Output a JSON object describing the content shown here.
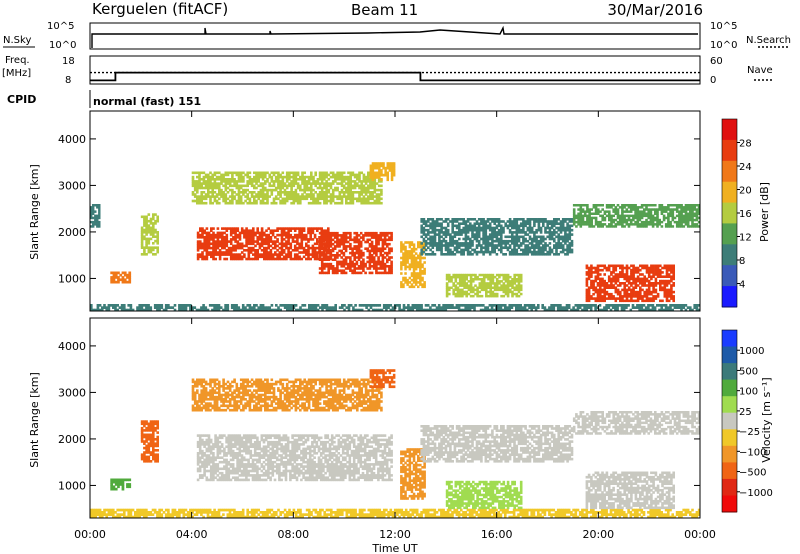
{
  "header": {
    "station": "Kerguelen (fitACF)",
    "beam": "Beam 11",
    "date": "30/Mar/2016"
  },
  "params": {
    "nsky_label": "N.Sky",
    "nsearch_label": "N.Search",
    "freq_label_line1": "Freq.",
    "freq_label_line2": "[MHz]",
    "nave_label": "Nave",
    "cpid_label": "CPID",
    "cpid_text": "normal (fast) 151",
    "nsky_ticks": [
      "10^5",
      "10^0"
    ],
    "nsearch_ticks": [
      "10^5",
      "10^0"
    ],
    "freq_ticks": [
      "18",
      "8"
    ],
    "nave_ticks": [
      "60",
      "0"
    ],
    "freq_steps": [
      {
        "t": 0.0,
        "mhz": 9.0
      },
      {
        "t": 1.0,
        "mhz": 12.0
      },
      {
        "t": 13.0,
        "mhz": 9.0
      },
      {
        "t": 24.0,
        "mhz": 9.0
      }
    ],
    "nave_level": 24
  },
  "chart_data": [
    {
      "type": "heatmap",
      "name": "power",
      "ylabel": "Slant Range [km]",
      "yticks": [
        "1000",
        "2000",
        "3000",
        "4000"
      ],
      "ylim": [
        300,
        4600
      ],
      "xlim": [
        0,
        24
      ],
      "colorbar_label": "Power [dB]",
      "colorbar_ticks": [
        "4",
        "8",
        "12",
        "16",
        "20",
        "24",
        "28"
      ],
      "colors": [
        "#1a1aff",
        "#3a5ab8",
        "#3d7d78",
        "#55a050",
        "#b4cc40",
        "#f0b020",
        "#f07818",
        "#e83c10",
        "#e01010"
      ],
      "regions": [
        {
          "t0": 0.0,
          "t1": 24.0,
          "r0": 300,
          "r1": 450,
          "v": 9
        },
        {
          "t0": 0.8,
          "t1": 1.6,
          "r0": 900,
          "r1": 1150,
          "v": 21
        },
        {
          "t0": 2.0,
          "t1": 2.7,
          "r0": 1500,
          "r1": 2400,
          "v": 15
        },
        {
          "t0": 4.2,
          "t1": 9.5,
          "r0": 1400,
          "r1": 2100,
          "v": 26
        },
        {
          "t0": 9.0,
          "t1": 11.9,
          "r0": 1100,
          "r1": 2000,
          "v": 28
        },
        {
          "t0": 4.0,
          "t1": 11.5,
          "r0": 2600,
          "r1": 3300,
          "v": 14
        },
        {
          "t0": 11.0,
          "t1": 12.0,
          "r0": 3100,
          "r1": 3500,
          "v": 19
        },
        {
          "t0": 12.2,
          "t1": 13.2,
          "r0": 800,
          "r1": 1800,
          "v": 17
        },
        {
          "t0": 13.0,
          "t1": 19.0,
          "r0": 1500,
          "r1": 2300,
          "v": 8
        },
        {
          "t0": 14.0,
          "t1": 17.0,
          "r0": 600,
          "r1": 1100,
          "v": 15
        },
        {
          "t0": 19.0,
          "t1": 24.0,
          "r0": 2100,
          "r1": 2600,
          "v": 10
        },
        {
          "t0": 19.5,
          "t1": 23.0,
          "r0": 500,
          "r1": 1300,
          "v": 25
        },
        {
          "t0": 0.0,
          "t1": 0.4,
          "r0": 2100,
          "r1": 2600,
          "v": 7
        }
      ]
    },
    {
      "type": "heatmap",
      "name": "velocity",
      "ylabel": "Slant Range [km]",
      "yticks": [
        "1000",
        "2000",
        "3000",
        "4000"
      ],
      "ylim": [
        300,
        4600
      ],
      "xlim": [
        0,
        24
      ],
      "xticks": [
        "00:00",
        "04:00",
        "08:00",
        "12:00",
        "16:00",
        "20:00",
        "00:00"
      ],
      "xlabel": "Time UT",
      "colorbar_label": "Velocity [m s⁻¹]",
      "colorbar_ticks": [
        "1000",
        "500",
        "100",
        "25",
        "−25",
        "−100",
        "−500",
        "−1000"
      ],
      "colors": [
        "#1a3cff",
        "#1e5aa8",
        "#3c7a7a",
        "#50aa3c",
        "#a0dc50",
        "#c8c8c0",
        "#f0c828",
        "#f09628",
        "#f06414",
        "#e02814",
        "#f00a0a"
      ],
      "regions": [
        {
          "t0": 0.0,
          "t1": 24.0,
          "r0": 300,
          "r1": 500,
          "v": "#f0c828"
        },
        {
          "t0": 0.8,
          "t1": 1.6,
          "r0": 900,
          "r1": 1150,
          "v": "#50aa3c"
        },
        {
          "t0": 2.0,
          "t1": 2.7,
          "r0": 1500,
          "r1": 2400,
          "v": "#f06414"
        },
        {
          "t0": 4.2,
          "t1": 11.9,
          "r0": 1100,
          "r1": 2100,
          "v": "#c8c8c0"
        },
        {
          "t0": 4.0,
          "t1": 11.5,
          "r0": 2600,
          "r1": 3300,
          "v": "#f09628"
        },
        {
          "t0": 11.0,
          "t1": 12.0,
          "r0": 3100,
          "r1": 3500,
          "v": "#f06414"
        },
        {
          "t0": 12.2,
          "t1": 13.2,
          "r0": 700,
          "r1": 1800,
          "v": "#f09628"
        },
        {
          "t0": 13.0,
          "t1": 19.0,
          "r0": 1500,
          "r1": 2300,
          "v": "#c8c8c0"
        },
        {
          "t0": 14.0,
          "t1": 17.0,
          "r0": 500,
          "r1": 1100,
          "v": "#a0dc50"
        },
        {
          "t0": 19.0,
          "t1": 24.0,
          "r0": 2100,
          "r1": 2600,
          "v": "#c8c8c0"
        },
        {
          "t0": 19.5,
          "t1": 23.0,
          "r0": 500,
          "r1": 1300,
          "v": "#c8c8c0"
        }
      ]
    }
  ]
}
